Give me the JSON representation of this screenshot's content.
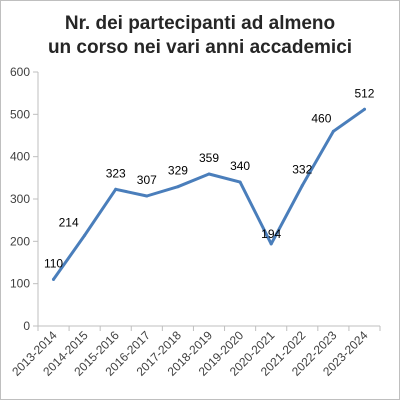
{
  "chart_data": {
    "type": "line",
    "title_lines": [
      "Nr. dei partecipanti ad almeno",
      "un corso nei vari anni accademici"
    ],
    "categories": [
      "2013-2014",
      "2014-2015",
      "2015-2016",
      "2016-2017",
      "2017-2018",
      "2018-2019",
      "2019-2020",
      "2020-2021",
      "2021-2022",
      "2022-2023",
      "2023-2024"
    ],
    "series": [
      {
        "values": [
          110,
          214,
          323,
          307,
          329,
          359,
          340,
          194,
          332,
          460,
          512
        ]
      }
    ],
    "data_labels": [
      "110",
      "214",
      "323",
      "307",
      "329",
      "359",
      "340",
      "194",
      "332",
      "460",
      "512"
    ],
    "y_ticks": [
      "0",
      "100",
      "200",
      "300",
      "400",
      "500",
      "600"
    ],
    "ylim": [
      0,
      600
    ],
    "grid": false,
    "legend": "none",
    "colors": {
      "line": "#4a7ebb",
      "axis": "#bfbfbf"
    }
  }
}
